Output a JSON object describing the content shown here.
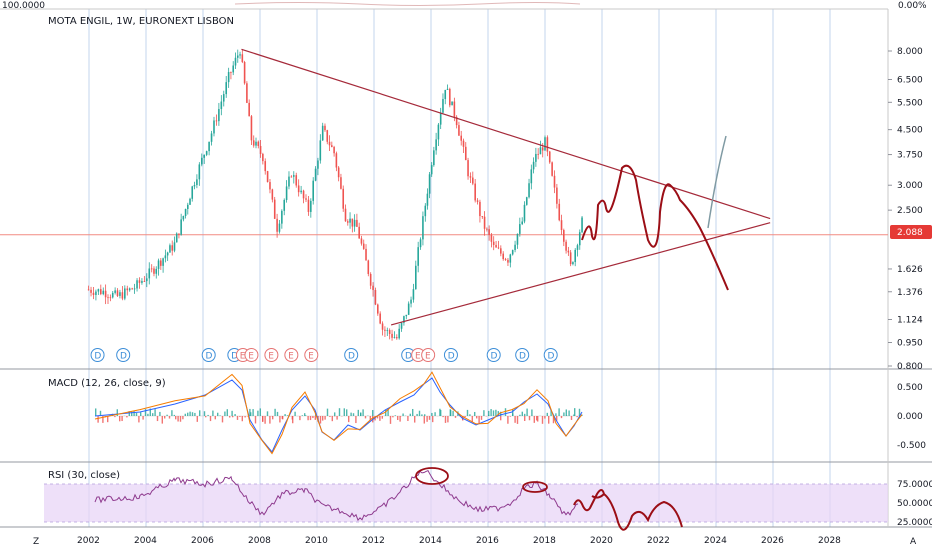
{
  "chart_title": "MOTA ENGIL, 1W, EURONEXT LISBON",
  "top_scale": {
    "left": "100.0000",
    "right": "0.00%"
  },
  "bottom_corner": {
    "left": "Z",
    "right": "A"
  },
  "last_price": "2.088",
  "colors": {
    "up": "#26a69a",
    "down": "#ef5350",
    "trend": "#a52a3a",
    "drawing": "#8b0000",
    "projection_up": "#7f9aa3",
    "price_line": "#f28b82",
    "price_badge": "#e53935",
    "macd": "#2962ff",
    "signal": "#f57c00",
    "rsi": "#8e3a8e",
    "rsi_band": "#e8d5f7",
    "vgrid": "#9bb8e0",
    "dividend": "#3d8ed8",
    "earnings": "#e57373"
  },
  "x_axis": {
    "labels": [
      "2002",
      "2004",
      "2006",
      "2008",
      "2010",
      "2012",
      "2014",
      "2016",
      "2018",
      "2020",
      "2022",
      "2024",
      "2026",
      "2028"
    ]
  },
  "price_pane": {
    "y_ticks": [
      "8.000",
      "6.500",
      "5.500",
      "4.500",
      "3.750",
      "3.000",
      "2.500",
      "1.626",
      "1.376",
      "1.124",
      "0.950",
      "0.800"
    ],
    "events": [
      {
        "t": "D",
        "y": 2002.3
      },
      {
        "t": "D",
        "y": 2003.2
      },
      {
        "t": "D",
        "y": 2006.2
      },
      {
        "t": "D",
        "y": 2007.1
      },
      {
        "t": "E",
        "y": 2007.4
      },
      {
        "t": "E",
        "y": 2007.7
      },
      {
        "t": "E",
        "y": 2008.4
      },
      {
        "t": "E",
        "y": 2009.1
      },
      {
        "t": "E",
        "y": 2009.8
      },
      {
        "t": "D",
        "y": 2011.2
      },
      {
        "t": "D",
        "y": 2013.2
      },
      {
        "t": "E",
        "y": 2013.55
      },
      {
        "t": "E",
        "y": 2013.9
      },
      {
        "t": "D",
        "y": 2014.7
      },
      {
        "t": "D",
        "y": 2016.2
      },
      {
        "t": "D",
        "y": 2017.2
      },
      {
        "t": "D",
        "y": 2018.2
      }
    ]
  },
  "macd_pane": {
    "title": "MACD (12, 26, close, 9)",
    "y_ticks": [
      "0.500",
      "0.000",
      "-0.500"
    ]
  },
  "rsi_pane": {
    "title": "RSI (30, close)",
    "y_ticks": [
      "75.0000",
      "50.0000",
      "25.0000"
    ]
  },
  "chart_data": {
    "type": "line",
    "symbol": "MOTA ENGIL",
    "timeframe": "1W",
    "series": [
      {
        "x": [
          2001.9,
          2002.5,
          2003.0,
          2003.6,
          2004.2,
          2005.0,
          2005.7,
          2006.3,
          2006.9,
          2007.3,
          2007.7,
          2008.1,
          2008.6,
          2009.1,
          2009.7,
          2010.2,
          2010.6,
          2011.0,
          2011.4,
          2011.8,
          2012.3,
          2012.8,
          2013.3,
          2013.8,
          2014.1,
          2014.5,
          2014.9,
          2015.3,
          2015.8,
          2016.2,
          2016.7,
          2017.2,
          2017.6,
          2018.0,
          2018.5,
          2018.9,
          2019.3
        ],
        "values": [
          1.4,
          1.38,
          1.33,
          1.42,
          1.6,
          1.95,
          3.1,
          4.4,
          6.6,
          8.1,
          4.2,
          3.7,
          2.2,
          3.3,
          2.5,
          4.5,
          3.8,
          2.4,
          2.2,
          1.6,
          1.05,
          0.98,
          1.3,
          2.6,
          4.0,
          6.2,
          4.8,
          3.3,
          2.3,
          1.9,
          1.75,
          2.3,
          3.6,
          4.1,
          2.4,
          1.65,
          2.3
        ]
      }
    ],
    "trend_lines": [
      {
        "from": [
          2007.35,
          8.1
        ],
        "to": [
          2025.9,
          2.35
        ]
      },
      {
        "from": [
          2012.6,
          1.08
        ],
        "to": [
          2025.9,
          2.28
        ]
      }
    ],
    "y_range": [
      0.78,
      9.0
    ],
    "y_scale": "log"
  }
}
